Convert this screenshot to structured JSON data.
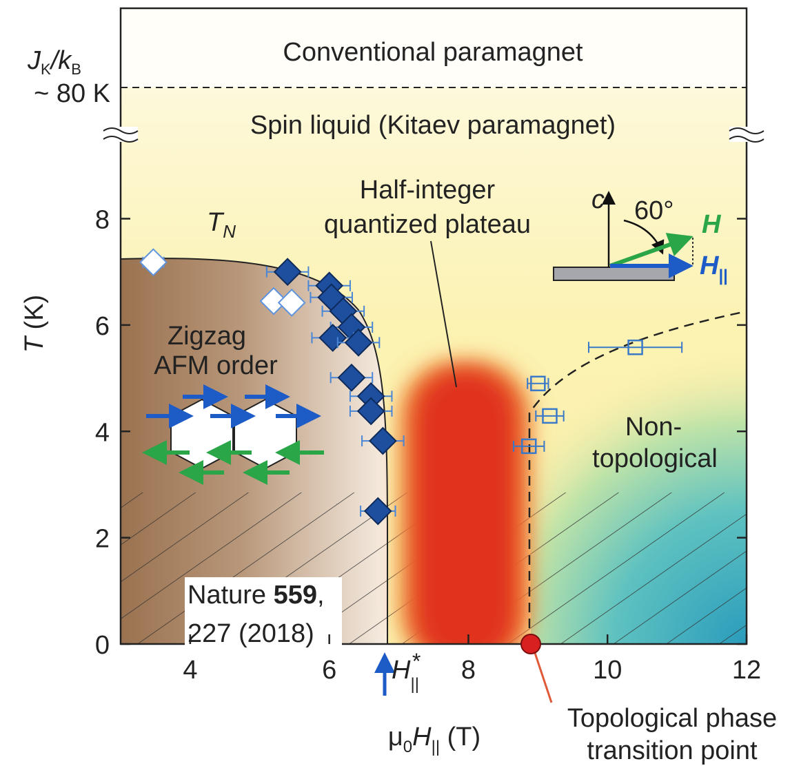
{
  "chart_data": {
    "type": "scatter",
    "xlim": [
      3,
      12
    ],
    "xticks": [
      4,
      6,
      8,
      10,
      12
    ],
    "ylim": [
      0,
      9.6
    ],
    "yticks": [
      0,
      2,
      4,
      6,
      8
    ],
    "x_label": [
      "μ",
      "0",
      "H",
      "||",
      " (T)"
    ],
    "y_label": [
      "T",
      " (K)"
    ],
    "upper_axis": {
      "label": [
        "J",
        "K",
        "/k",
        "B"
      ],
      "value_label": "~ 80 K"
    },
    "series": [
      {
        "marker": "diamond",
        "filled": true,
        "color": "#1d4f9e",
        "x": [
          5.4,
          6.0,
          6.03,
          6.2,
          6.32,
          6.05,
          6.42,
          6.32,
          6.6,
          6.6,
          6.77,
          6.7
        ],
        "y": [
          7.0,
          6.74,
          6.52,
          6.26,
          5.96,
          5.76,
          5.67,
          5.01,
          4.66,
          4.38,
          3.82,
          2.5
        ],
        "xerr": [
          0.3,
          0.3,
          0.3,
          0.3,
          0.3,
          0.3,
          0.3,
          0.3,
          0.3,
          0.3,
          0.3,
          0.25
        ]
      },
      {
        "marker": "diamond",
        "filled": false,
        "color": "#5f93dc",
        "x": [
          3.47,
          5.2,
          5.46
        ],
        "y": [
          7.18,
          6.45,
          6.42
        ],
        "xerr": [
          0.15,
          0.1,
          0.1
        ]
      },
      {
        "marker": "square",
        "filled": false,
        "color": "#3a78c8",
        "x": [
          9.0,
          9.17,
          8.87,
          10.4
        ],
        "y": [
          4.9,
          4.29,
          3.72,
          5.58
        ],
        "xerr": [
          0.15,
          0.2,
          0.22,
          0.67
        ]
      }
    ],
    "annotations": {
      "conventional": "Conventional paramagnet",
      "spin_liquid": "Spin liquid (Kitaev paramagnet)",
      "tn": [
        "T",
        "N"
      ],
      "plateau": [
        "Half-integer",
        "quantized plateau"
      ],
      "zigzag": [
        "Zigzag",
        "AFM order"
      ],
      "nontopo": [
        "Non-",
        "topological"
      ],
      "topo_point": [
        "Topological phase",
        "transition point"
      ],
      "hstar": [
        "H",
        "||",
        "*"
      ],
      "inset": {
        "c": "c",
        "angle": "60°",
        "h": "H",
        "hpar": [
          "H",
          "||"
        ]
      },
      "citation": [
        [
          "Nature ",
          "559",
          ","
        ],
        "227 (2018)"
      ]
    }
  }
}
